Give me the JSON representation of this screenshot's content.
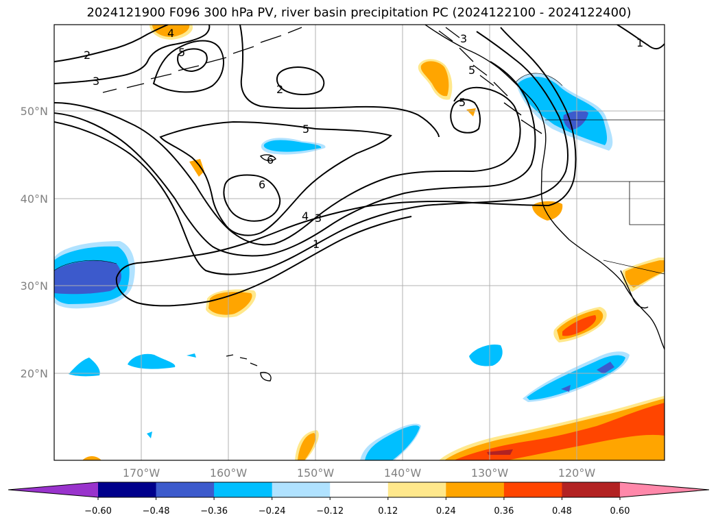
{
  "title": "2024121900 F096 300 hPa PV, river basin precipitation PC (2024122100 - 2024122400)",
  "lat_labels": [
    "50°N",
    "40°N",
    "30°N",
    "20°N"
  ],
  "lon_labels": [
    "170°W",
    "160°W",
    "150°W",
    "140°W",
    "130°W",
    "120°W"
  ],
  "contour_labels": [
    "2",
    "3",
    "4",
    "5",
    "5",
    "2",
    "5",
    "5",
    "6",
    "6",
    "4",
    "3",
    "1",
    "1",
    "3"
  ],
  "colorbar": {
    "ticks": [
      "−0.60",
      "−0.48",
      "−0.36",
      "−0.24",
      "−0.12",
      "0.12",
      "0.24",
      "0.36",
      "0.48",
      "0.60"
    ],
    "colors": [
      "#9933cc",
      "#00008b",
      "#3c5acc",
      "#00bfff",
      "#b0e2ff",
      "#ffffff",
      "#ffe88c",
      "#ffa500",
      "#ff4500",
      "#b22222",
      "#ff88aa"
    ]
  },
  "palette": {
    "neg_strong": "#3c5acc",
    "neg_mid": "#00bfff",
    "neg_light": "#b0e2ff",
    "pos_light": "#ffe88c",
    "pos_mid": "#ffa500",
    "pos_strong": "#ff4500",
    "pos_dark": "#b22222"
  }
}
